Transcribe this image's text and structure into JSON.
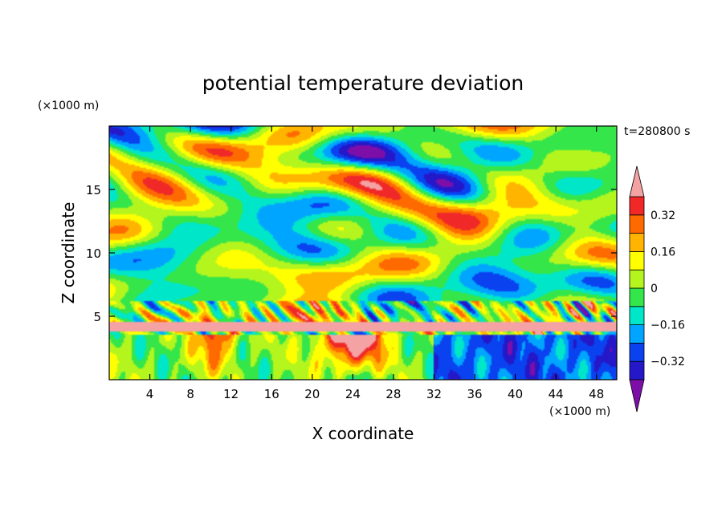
{
  "chart_data": {
    "type": "heatmap",
    "title": "potential temperature deviation",
    "xlabel": "X coordinate",
    "ylabel": "Z coordinate",
    "x_unit_label": "(×1000 m)",
    "y_unit_label": "(×1000 m)",
    "time_label": "t=280800 s",
    "xlim": [
      0,
      50
    ],
    "ylim": [
      0,
      20
    ],
    "x_ticks": [
      4,
      8,
      12,
      16,
      20,
      24,
      28,
      32,
      36,
      40,
      44,
      48
    ],
    "x_tick_labels": [
      "4",
      "8",
      "12",
      "16",
      "20",
      "24",
      "28",
      "32",
      "36",
      "40",
      "44",
      "48"
    ],
    "y_ticks": [
      5,
      10,
      15
    ],
    "y_tick_labels": [
      "5",
      "10",
      "15"
    ],
    "colorbar": {
      "levels": [
        -0.4,
        -0.32,
        -0.24,
        -0.16,
        -0.08,
        0,
        0.08,
        0.16,
        0.24,
        0.32,
        0.4
      ],
      "labeled_levels": [
        0.32,
        0.16,
        0,
        -0.16,
        -0.32
      ],
      "labels": [
        "0.32",
        "0.16",
        "0",
        "−0.16",
        "−0.32"
      ],
      "colors_low_to_high": [
        "#7d0fa8",
        "#2418c8",
        "#0a42f0",
        "#00a5ff",
        "#00e6c8",
        "#35e64b",
        "#b4f51e",
        "#ffff00",
        "#ffb400",
        "#ff6a00",
        "#f02828",
        "#f4a2a4"
      ],
      "extend": "both"
    }
  }
}
